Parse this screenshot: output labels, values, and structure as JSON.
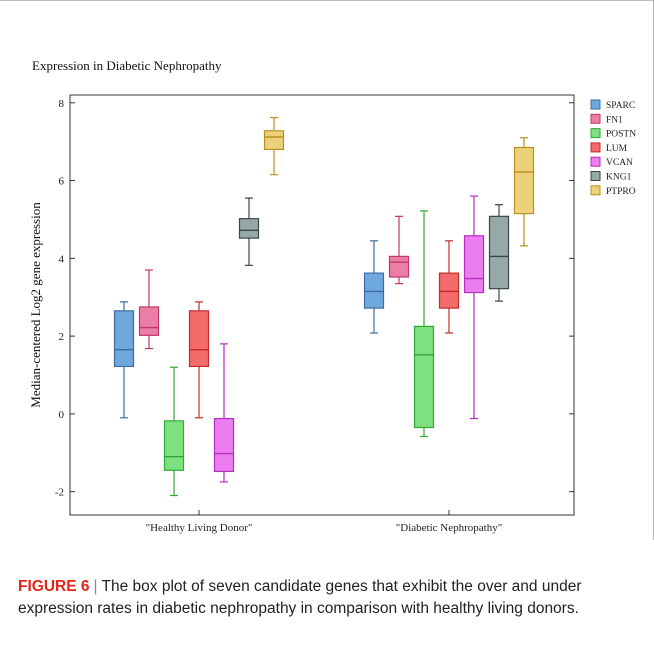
{
  "figure_title": "Expression in Diabetic Nephropathy",
  "caption": {
    "label": "FIGURE 6",
    "separator": "|",
    "text": "The box plot of seven candidate genes that exhibit the over and under expression rates in diabetic nephropathy in comparison with healthy living donors."
  },
  "chart_data": {
    "type": "box",
    "title": "Expression in Diabetic Nephropathy",
    "xlabel": "",
    "ylabel": "Median-centered Log2 gene expression",
    "ylim": [
      -2.6,
      8.2
    ],
    "yticks": [
      -2,
      0,
      2,
      4,
      6,
      8
    ],
    "categories": [
      "\"Healthy Living Donor\"",
      "\"Diabetic Nephropathy\""
    ],
    "legend_position": "top-right",
    "grid": false,
    "series": [
      {
        "name": "SPARC",
        "color": "#6fa8dc",
        "stroke": "#3d6e9e",
        "boxes": [
          {
            "min": -0.1,
            "q1": 1.22,
            "median": 1.65,
            "q3": 2.65,
            "max": 2.88
          },
          {
            "min": 2.08,
            "q1": 2.72,
            "median": 3.15,
            "q3": 3.62,
            "max": 4.45
          }
        ]
      },
      {
        "name": "FN1",
        "color": "#ea7fa6",
        "stroke": "#c2376a",
        "boxes": [
          {
            "min": 1.68,
            "q1": 2.02,
            "median": 2.22,
            "q3": 2.75,
            "max": 3.7
          },
          {
            "min": 3.35,
            "q1": 3.52,
            "median": 3.9,
            "q3": 4.05,
            "max": 5.08
          }
        ]
      },
      {
        "name": "POSTN",
        "color": "#7ee081",
        "stroke": "#2faa34",
        "boxes": [
          {
            "min": -2.1,
            "q1": -1.45,
            "median": -1.1,
            "q3": -0.18,
            "max": 1.2
          },
          {
            "min": -0.58,
            "q1": -0.35,
            "median": 1.52,
            "q3": 2.25,
            "max": 5.22
          }
        ]
      },
      {
        "name": "LUM",
        "color": "#f36b6b",
        "stroke": "#c42b2b",
        "boxes": [
          {
            "min": -0.1,
            "q1": 1.22,
            "median": 1.65,
            "q3": 2.65,
            "max": 2.88
          },
          {
            "min": 2.08,
            "q1": 2.72,
            "median": 3.15,
            "q3": 3.62,
            "max": 4.45
          }
        ]
      },
      {
        "name": "VCAN",
        "color": "#ec7df0",
        "stroke": "#b52fbb",
        "boxes": [
          {
            "min": -1.75,
            "q1": -1.48,
            "median": -1.02,
            "q3": -0.12,
            "max": 1.8
          },
          {
            "min": -0.12,
            "q1": 3.12,
            "median": 3.48,
            "q3": 4.58,
            "max": 5.6
          }
        ]
      },
      {
        "name": "KNG1",
        "color": "#98a8a8",
        "stroke": "#3a4646",
        "boxes": [
          {
            "min": 3.82,
            "q1": 4.52,
            "median": 4.72,
            "q3": 5.02,
            "max": 5.55
          },
          {
            "min": 2.9,
            "q1": 3.22,
            "median": 4.05,
            "q3": 5.08,
            "max": 5.38
          }
        ]
      },
      {
        "name": "PTPRO",
        "color": "#ecd07a",
        "stroke": "#b8901e",
        "boxes": [
          {
            "min": 6.15,
            "q1": 6.8,
            "median": 7.12,
            "q3": 7.28,
            "max": 7.62
          },
          {
            "min": 4.32,
            "q1": 5.15,
            "median": 6.22,
            "q3": 6.85,
            "max": 7.1
          }
        ]
      }
    ]
  }
}
